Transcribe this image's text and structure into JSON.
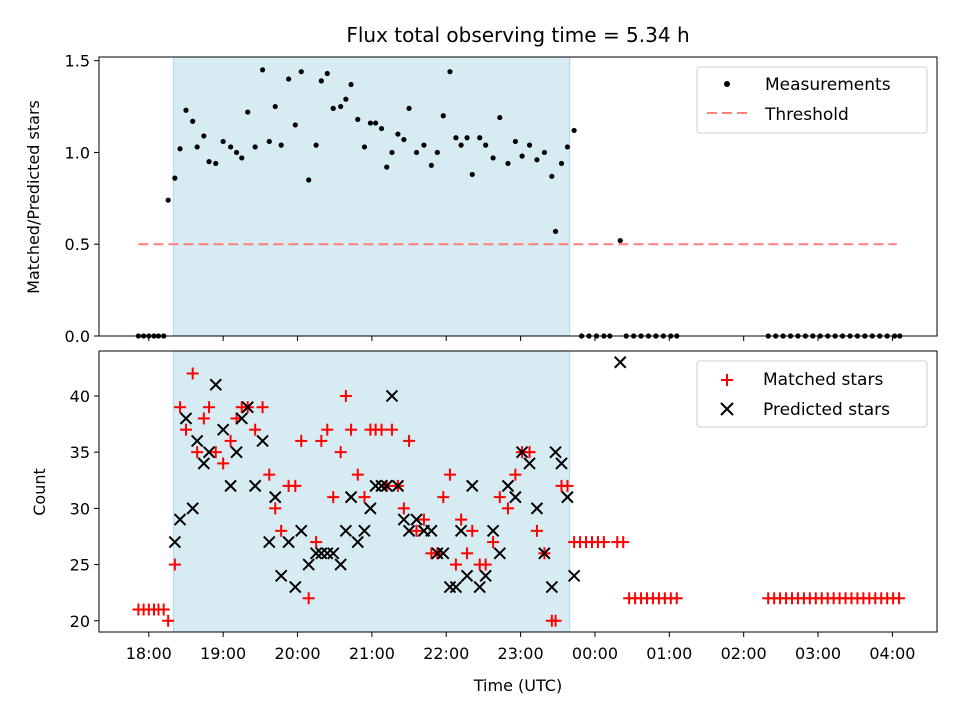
{
  "chart_data": [
    {
      "type": "scatter",
      "title": "Flux total observing time = 5.34 h",
      "xlabel": "",
      "ylabel": "Matched/Predicted stars",
      "ylim": [
        0,
        1.52
      ],
      "yticks": [
        "0.0",
        "0.5",
        "1.0",
        "1.5"
      ],
      "threshold": {
        "name": "Threshold",
        "value": 0.5,
        "color": "#ff7f7f",
        "x_range": [
          17.86,
          28.06
        ]
      },
      "shaded_region": {
        "x_range": [
          18.33,
          23.66
        ],
        "color": "#add8e6"
      },
      "legend": {
        "placement": "upper right",
        "entries": [
          "Measurements",
          "Threshold"
        ]
      },
      "series": [
        {
          "name": "Measurements",
          "marker": "dot",
          "color": "#000000",
          "x": [
            17.86,
            17.93,
            18.0,
            18.07,
            18.13,
            18.2,
            18.26,
            18.35,
            18.42,
            18.5,
            18.59,
            18.65,
            18.74,
            18.81,
            18.9,
            19.0,
            19.1,
            19.18,
            19.25,
            19.33,
            19.43,
            19.53,
            19.62,
            19.7,
            19.78,
            19.88,
            19.97,
            20.05,
            20.15,
            20.25,
            20.32,
            20.4,
            20.48,
            20.58,
            20.65,
            20.72,
            20.81,
            20.9,
            20.98,
            21.05,
            21.13,
            21.2,
            21.27,
            21.35,
            21.43,
            21.5,
            21.6,
            21.7,
            21.8,
            21.88,
            21.96,
            22.05,
            22.13,
            22.2,
            22.28,
            22.35,
            22.45,
            22.53,
            22.63,
            22.72,
            22.83,
            22.93,
            23.02,
            23.12,
            23.22,
            23.32,
            23.42,
            23.47,
            23.55,
            23.63,
            23.72,
            23.82,
            23.92,
            24.02,
            24.12,
            24.2,
            24.34,
            24.42,
            24.52,
            24.62,
            24.72,
            24.82,
            24.92,
            25.02,
            25.1,
            26.33,
            26.43,
            26.53,
            26.63,
            26.73,
            26.83,
            26.93,
            27.03,
            27.13,
            27.23,
            27.33,
            27.43,
            27.53,
            27.63,
            27.73,
            27.83,
            27.93,
            28.03,
            28.1
          ],
          "y": [
            0,
            0,
            0,
            0,
            0,
            0,
            0.74,
            0.86,
            1.02,
            1.23,
            1.17,
            1.03,
            1.09,
            0.95,
            0.94,
            1.06,
            1.03,
            1.0,
            0.97,
            1.22,
            1.03,
            1.45,
            1.06,
            1.25,
            1.04,
            1.4,
            1.15,
            1.44,
            0.85,
            1.04,
            1.39,
            1.43,
            1.24,
            1.25,
            1.29,
            1.37,
            1.18,
            1.03,
            1.16,
            1.16,
            1.13,
            0.92,
            1.0,
            1.1,
            1.07,
            1.24,
            1.0,
            1.04,
            0.93,
            1.0,
            1.2,
            1.44,
            1.08,
            1.04,
            1.08,
            0.88,
            1.08,
            1.04,
            0.97,
            1.19,
            0.94,
            1.06,
            0.98,
            1.04,
            0.96,
            1.0,
            0.87,
            0.57,
            0.94,
            1.03,
            1.12,
            0,
            0,
            0,
            0,
            0,
            0.52,
            0,
            0,
            0,
            0,
            0,
            0,
            0,
            0,
            0,
            0,
            0,
            0,
            0,
            0,
            0,
            0,
            0,
            0,
            0,
            0,
            0,
            0,
            0,
            0,
            0,
            0,
            0
          ]
        }
      ]
    },
    {
      "type": "scatter",
      "title": "",
      "xlabel": "Time (UTC)",
      "ylabel": "Count",
      "ylim": [
        19,
        44
      ],
      "yticks": [
        "20",
        "25",
        "30",
        "35",
        "40"
      ],
      "xlim": [
        17.33,
        28.6
      ],
      "xticks": [
        "18:00",
        "19:00",
        "20:00",
        "21:00",
        "22:00",
        "23:00",
        "00:00",
        "01:00",
        "02:00",
        "03:00",
        "04:00"
      ],
      "shaded_region": {
        "x_range": [
          18.33,
          23.66
        ],
        "color": "#add8e6"
      },
      "legend": {
        "placement": "upper right",
        "entries": [
          "Matched stars",
          "Predicted stars"
        ]
      },
      "series": [
        {
          "name": "Matched stars",
          "marker": "plus",
          "color": "#ff0000",
          "x": [
            17.86,
            17.93,
            18.0,
            18.07,
            18.13,
            18.2,
            18.26,
            18.35,
            18.42,
            18.5,
            18.59,
            18.65,
            18.74,
            18.81,
            18.9,
            19.0,
            19.1,
            19.18,
            19.25,
            19.33,
            19.43,
            19.53,
            19.62,
            19.7,
            19.78,
            19.88,
            19.97,
            20.05,
            20.15,
            20.25,
            20.32,
            20.4,
            20.48,
            20.58,
            20.65,
            20.72,
            20.81,
            20.9,
            20.98,
            21.05,
            21.13,
            21.2,
            21.27,
            21.35,
            21.43,
            21.5,
            21.6,
            21.7,
            21.8,
            21.88,
            21.96,
            22.05,
            22.13,
            22.2,
            22.28,
            22.35,
            22.45,
            22.53,
            22.63,
            22.72,
            22.83,
            22.93,
            23.02,
            23.12,
            23.22,
            23.32,
            23.42,
            23.47,
            23.55,
            23.63,
            23.72,
            23.8,
            23.88,
            23.96,
            24.04,
            24.12,
            24.3,
            24.38,
            24.46,
            24.54,
            24.62,
            24.7,
            24.78,
            24.86,
            24.94,
            25.02,
            25.1,
            26.33,
            26.41,
            26.49,
            26.57,
            26.65,
            26.73,
            26.81,
            26.89,
            26.97,
            27.05,
            27.13,
            27.21,
            27.29,
            27.37,
            27.45,
            27.53,
            27.61,
            27.69,
            27.77,
            27.85,
            27.93,
            28.01,
            28.09
          ],
          "y": [
            21,
            21,
            21,
            21,
            21,
            21,
            20,
            25,
            39,
            37,
            42,
            35,
            38,
            39,
            35,
            34,
            36,
            38,
            39,
            39,
            37,
            39,
            33,
            30,
            28,
            32,
            32,
            36,
            22,
            27,
            36,
            37,
            31,
            35,
            40,
            37,
            33,
            31,
            37,
            37,
            37,
            32,
            37,
            32,
            30,
            36,
            28,
            29,
            26,
            26,
            31,
            33,
            25,
            29,
            26,
            28,
            25,
            25,
            27,
            31,
            30,
            33,
            35,
            35,
            28,
            26,
            20,
            20,
            32,
            32,
            27,
            27,
            27,
            27,
            27,
            27,
            27,
            27,
            22,
            22,
            22,
            22,
            22,
            22,
            22,
            22,
            22,
            22,
            22,
            22,
            22,
            22,
            22,
            22,
            22,
            22,
            22,
            22,
            22,
            22,
            22,
            22,
            22,
            22,
            22,
            22,
            22,
            22,
            22,
            22
          ]
        },
        {
          "name": "Predicted stars",
          "marker": "x",
          "color": "#000000",
          "x": [
            18.35,
            18.42,
            18.5,
            18.59,
            18.65,
            18.74,
            18.81,
            18.9,
            19.0,
            19.1,
            19.18,
            19.25,
            19.33,
            19.43,
            19.53,
            19.62,
            19.7,
            19.78,
            19.88,
            19.97,
            20.05,
            20.15,
            20.25,
            20.32,
            20.4,
            20.48,
            20.58,
            20.65,
            20.72,
            20.81,
            20.9,
            20.98,
            21.05,
            21.13,
            21.2,
            21.27,
            21.35,
            21.43,
            21.5,
            21.6,
            21.7,
            21.8,
            21.88,
            21.96,
            22.05,
            22.13,
            22.2,
            22.28,
            22.35,
            22.45,
            22.53,
            22.63,
            22.72,
            22.83,
            22.93,
            23.02,
            23.12,
            23.22,
            23.32,
            23.42,
            23.47,
            23.55,
            23.63,
            23.72,
            24.34
          ],
          "y": [
            27,
            29,
            38,
            30,
            36,
            34,
            35,
            41,
            37,
            32,
            35,
            38,
            39,
            32,
            36,
            27,
            31,
            24,
            27,
            23,
            28,
            25,
            26,
            26,
            26,
            26,
            25,
            28,
            31,
            27,
            28,
            30,
            32,
            32,
            32,
            40,
            32,
            29,
            28,
            29,
            28,
            28,
            26,
            26,
            23,
            23,
            28,
            24,
            32,
            23,
            24,
            28,
            26,
            32,
            31,
            35,
            34,
            30,
            26,
            23,
            35,
            34,
            31,
            24,
            43
          ]
        }
      ]
    }
  ]
}
